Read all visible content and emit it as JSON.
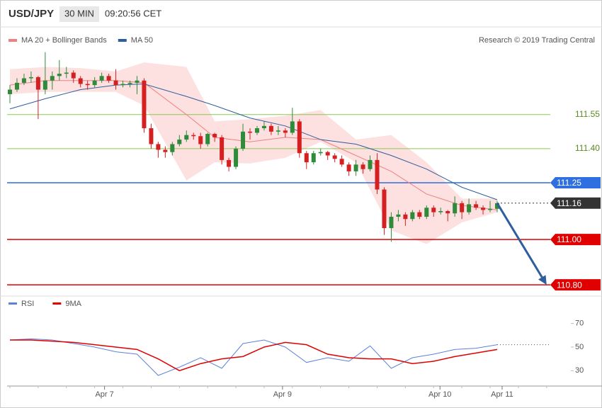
{
  "header": {
    "symbol": "USD/JPY",
    "interval": "30 MIN",
    "time": "09:20:56 CET"
  },
  "chart_data": {
    "type": "candlestick",
    "legend": [
      {
        "name": "MA 20 + Bollinger Bands",
        "color": "#f08080"
      },
      {
        "name": "MA 50",
        "color": "#2f5e9e"
      }
    ],
    "credit": "Research © 2019 Trading Central",
    "ylim": [
      110.76,
      111.93
    ],
    "xlim": [
      0,
      69
    ],
    "xticks": [
      {
        "value": 13.4,
        "label": "Apr 7"
      },
      {
        "value": 38.6,
        "label": "Apr 9"
      },
      {
        "value": 60.9,
        "label": "Apr 10"
      },
      {
        "value": 69.7,
        "label": "Apr 11"
      }
    ],
    "up_color": "#2e8b3a",
    "down_color": "#d42020",
    "candles": [
      [
        111.64,
        111.68,
        111.6,
        111.66
      ],
      [
        111.66,
        111.71,
        111.65,
        111.69
      ],
      [
        111.69,
        111.73,
        111.68,
        111.71
      ],
      [
        111.71,
        111.74,
        111.69,
        111.715
      ],
      [
        111.715,
        111.72,
        111.53,
        111.66
      ],
      [
        111.66,
        111.825,
        111.64,
        111.7
      ],
      [
        111.7,
        111.74,
        111.66,
        111.72
      ],
      [
        111.72,
        111.79,
        111.7,
        111.73
      ],
      [
        111.73,
        111.76,
        111.71,
        111.735
      ],
      [
        111.735,
        111.745,
        111.69,
        111.71
      ],
      [
        111.71,
        111.72,
        111.67,
        111.685
      ],
      [
        111.685,
        111.7,
        111.66,
        111.68
      ],
      [
        111.68,
        111.715,
        111.67,
        111.7
      ],
      [
        111.7,
        111.735,
        111.69,
        111.72
      ],
      [
        111.72,
        111.73,
        111.69,
        111.7
      ],
      [
        111.7,
        111.75,
        111.66,
        111.68
      ],
      [
        111.68,
        111.7,
        111.67,
        111.685
      ],
      [
        111.685,
        111.7,
        111.67,
        111.69
      ],
      [
        111.69,
        111.72,
        111.64,
        111.7
      ],
      [
        111.7,
        111.71,
        111.47,
        111.49
      ],
      [
        111.49,
        111.51,
        111.4,
        111.42
      ],
      [
        111.42,
        111.43,
        111.36,
        111.395
      ],
      [
        111.395,
        111.41,
        111.36,
        111.385
      ],
      [
        111.385,
        111.43,
        111.37,
        111.42
      ],
      [
        111.42,
        111.46,
        111.41,
        111.44
      ],
      [
        111.44,
        111.48,
        111.43,
        111.46
      ],
      [
        111.46,
        111.47,
        111.44,
        111.455
      ],
      [
        111.455,
        111.47,
        111.4,
        111.42
      ],
      [
        111.42,
        111.47,
        111.41,
        111.465
      ],
      [
        111.465,
        111.47,
        111.43,
        111.45
      ],
      [
        111.45,
        111.46,
        111.33,
        111.35
      ],
      [
        111.35,
        111.36,
        111.3,
        111.32
      ],
      [
        111.32,
        111.41,
        111.31,
        111.4
      ],
      [
        111.4,
        111.51,
        111.39,
        111.475
      ],
      [
        111.475,
        111.49,
        111.44,
        111.47
      ],
      [
        111.47,
        111.5,
        111.46,
        111.49
      ],
      [
        111.49,
        111.52,
        111.48,
        111.5
      ],
      [
        111.5,
        111.51,
        111.46,
        111.475
      ],
      [
        111.475,
        111.5,
        111.46,
        111.48
      ],
      [
        111.48,
        111.49,
        111.45,
        111.47
      ],
      [
        111.47,
        111.58,
        111.46,
        111.52
      ],
      [
        111.52,
        111.53,
        111.36,
        111.38
      ],
      [
        111.38,
        111.39,
        111.31,
        111.34
      ],
      [
        111.34,
        111.39,
        111.33,
        111.38
      ],
      [
        111.38,
        111.4,
        111.37,
        111.385
      ],
      [
        111.385,
        111.39,
        111.35,
        111.37
      ],
      [
        111.37,
        111.38,
        111.34,
        111.355
      ],
      [
        111.355,
        111.37,
        111.32,
        111.33
      ],
      [
        111.33,
        111.34,
        111.28,
        111.3
      ],
      [
        111.3,
        111.35,
        111.28,
        111.33
      ],
      [
        111.33,
        111.34,
        111.29,
        111.31
      ],
      [
        111.31,
        111.37,
        111.3,
        111.35
      ],
      [
        111.35,
        111.38,
        111.2,
        111.22
      ],
      [
        111.22,
        111.23,
        111.02,
        111.05
      ],
      [
        111.05,
        111.12,
        110.99,
        111.1
      ],
      [
        111.1,
        111.13,
        111.08,
        111.11
      ],
      [
        111.11,
        111.12,
        111.06,
        111.09
      ],
      [
        111.09,
        111.13,
        111.08,
        111.12
      ],
      [
        111.12,
        111.13,
        111.09,
        111.1
      ],
      [
        111.1,
        111.15,
        111.09,
        111.14
      ],
      [
        111.14,
        111.15,
        111.1,
        111.12
      ],
      [
        111.12,
        111.14,
        111.11,
        111.125
      ],
      [
        111.125,
        111.13,
        111.08,
        111.115
      ],
      [
        111.115,
        111.19,
        111.1,
        111.16
      ],
      [
        111.16,
        111.17,
        111.09,
        111.12
      ],
      [
        111.12,
        111.18,
        111.11,
        111.155
      ],
      [
        111.155,
        111.17,
        111.13,
        111.14
      ],
      [
        111.14,
        111.15,
        111.11,
        111.13
      ],
      [
        111.13,
        111.17,
        111.12,
        111.135
      ],
      [
        111.135,
        111.17,
        111.12,
        111.16
      ]
    ],
    "bands": {
      "x": [
        0,
        5,
        10,
        15,
        19,
        25,
        29,
        34,
        39,
        44,
        49,
        54,
        59,
        64,
        69
      ],
      "upper": [
        111.75,
        111.76,
        111.755,
        111.74,
        111.78,
        111.76,
        111.52,
        111.53,
        111.545,
        111.57,
        111.44,
        111.46,
        111.34,
        111.18,
        111.18
      ],
      "lower": [
        111.64,
        111.65,
        111.65,
        111.65,
        111.59,
        111.26,
        111.34,
        111.335,
        111.36,
        111.43,
        111.34,
        111.04,
        110.98,
        111.075,
        111.12
      ],
      "fill": "#fde0e0"
    },
    "series": [
      {
        "name": "MA 20",
        "color": "#f08080",
        "x": [
          0,
          5,
          10,
          15,
          19,
          25,
          29,
          34,
          39,
          44,
          49,
          54,
          59,
          64,
          69
        ],
        "values": [
          111.68,
          111.7,
          111.7,
          111.7,
          111.69,
          111.55,
          111.45,
          111.43,
          111.45,
          111.44,
          111.37,
          111.3,
          111.2,
          111.15,
          111.13
        ]
      },
      {
        "name": "MA 50",
        "color": "#2f5e9e",
        "x": [
          0,
          5,
          10,
          15,
          19,
          25,
          29,
          34,
          39,
          44,
          49,
          54,
          59,
          64,
          69
        ],
        "values": [
          111.575,
          111.62,
          111.66,
          111.68,
          111.685,
          111.63,
          111.59,
          111.535,
          111.5,
          111.44,
          111.42,
          111.37,
          111.31,
          111.23,
          111.175
        ]
      }
    ],
    "price_levels": [
      {
        "value": 111.55,
        "color": "#8cc850",
        "boxed": false
      },
      {
        "value": {
          "value": 111.4,
          "label": "111.40"
        },
        "color": "#8cc850",
        "boxed": false
      },
      {
        "value": 111.25,
        "color": "#2f6fe0",
        "boxed": true
      },
      {
        "value": 111.16,
        "color": "#333333",
        "boxed": true,
        "dotted": true
      },
      {
        "value": {
          "value": 111,
          "label": "111.00"
        },
        "color": "#e00000",
        "boxed": true
      },
      {
        "value": {
          "value": 110.8,
          "label": "110.80"
        },
        "color": "#e00000",
        "boxed": true
      }
    ],
    "arrow": {
      "from": [
        69,
        111.16
      ],
      "to": [
        76,
        110.8
      ],
      "color": "#2f5e9e"
    },
    "rsi": {
      "legend": [
        {
          "name": "RSI",
          "color": "#5b82d9"
        },
        {
          "name": "9MA",
          "color": "#e00000"
        }
      ],
      "ylim": [
        20,
        89
      ],
      "yticks": [
        30,
        50,
        70
      ],
      "x": [
        0,
        3,
        6,
        9,
        12,
        15,
        18,
        21,
        24,
        27,
        30,
        33,
        36,
        39,
        42,
        45,
        48,
        51,
        54,
        57,
        60,
        63,
        66,
        69
      ],
      "rsi": [
        56,
        57,
        56,
        53,
        50,
        46,
        44,
        26,
        33,
        41,
        32,
        53,
        56,
        50,
        37,
        41,
        38,
        51,
        32,
        41,
        44,
        48,
        49,
        52
      ],
      "ma": [
        56,
        56,
        55,
        54,
        52,
        50,
        48,
        40,
        30,
        36,
        40,
        42,
        50,
        54,
        52,
        44,
        41,
        40,
        40,
        36,
        38,
        42,
        45,
        48
      ]
    }
  }
}
